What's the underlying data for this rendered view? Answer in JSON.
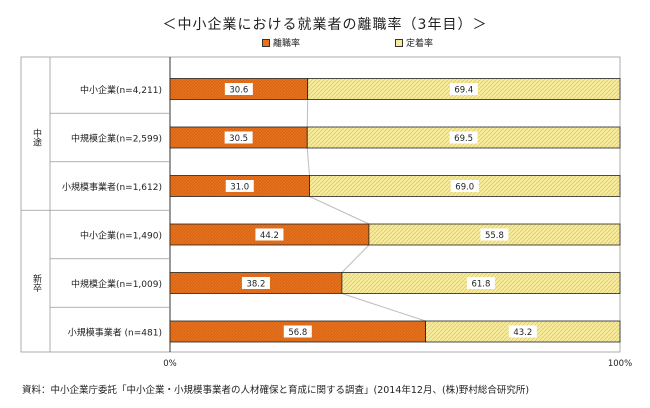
{
  "chart_data": {
    "type": "bar",
    "stacked": true,
    "orientation": "horizontal",
    "title": "＜中小企業における就業者の離職率（3年目）＞",
    "series": [
      {
        "name": "離職率",
        "color": "#e8721c",
        "values": [
          30.6,
          30.5,
          31.0,
          44.2,
          38.2,
          56.8
        ]
      },
      {
        "name": "定着率",
        "color": "#f7ea9c",
        "values": [
          69.4,
          69.5,
          69.0,
          55.8,
          61.8,
          43.2
        ]
      }
    ],
    "categories": [
      "中小企業(n=4,211)",
      "中規模企業(n=2,599)",
      "小規模事業者(n=1,612)",
      "中小企業(n=1,490)",
      "中規模企業(n=1,009)",
      "小規模事業者 (n=481)"
    ],
    "groups": [
      {
        "label": "中途",
        "rows": [
          0,
          1,
          2
        ]
      },
      {
        "label": "新卒",
        "rows": [
          3,
          4,
          5
        ]
      }
    ],
    "xlim": [
      0,
      100
    ],
    "xticks": [
      "0%",
      "100%"
    ],
    "legend": "top",
    "grid": false
  },
  "source": "資料：中小企業庁委託「中小企業・小規模事業者の人材確保と育成に関する調査」(2014年12月、(株)野村総合研究所)"
}
